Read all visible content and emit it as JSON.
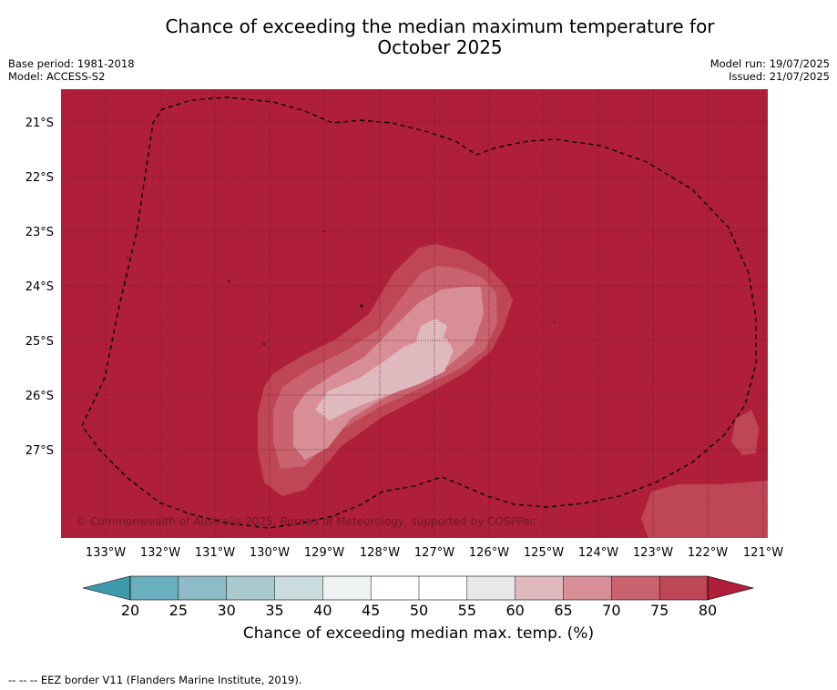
{
  "title": "Chance of exceeding the median maximum temperature for\nOctober 2025",
  "title_line1": "Chance of exceeding the median maximum temperature for",
  "title_line2": "October 2025",
  "base_period": "Base period: 1981-2018",
  "model": "Model: ACCESS-S2",
  "model_run": "Model run: 19/07/2025",
  "issued": "Issued: 21/07/2025",
  "copyright": "© Commonwealth of Australia 2025, Bureau of Meteorology, supported by COSPPac",
  "lat_labels": [
    "21°S",
    "22°S",
    "23°S",
    "24°S",
    "25°S",
    "26°S",
    "27°S"
  ],
  "lon_labels": [
    "133°W",
    "132°W",
    "131°W",
    "130°W",
    "129°W",
    "128°W",
    "127°W",
    "126°W",
    "125°W",
    "124°W",
    "123°W",
    "122°W",
    "121°W"
  ],
  "colorbar": {
    "title": "Chance of exceeding median max. temp. (%)",
    "ticks": [
      "20",
      "25",
      "30",
      "35",
      "40",
      "45",
      "50",
      "55",
      "60",
      "65",
      "70",
      "75",
      "80"
    ],
    "colors": [
      "#3f9aab",
      "#6aafbf",
      "#8dbcc8",
      "#aac9cf",
      "#cbdcdf",
      "#eef3f4",
      "#ffffff",
      "#ffffff",
      "#e8e8e8",
      "#e0b9bf",
      "#d78e97",
      "#c8636f",
      "#bf4655",
      "#b01f3a"
    ]
  },
  "map_colors": {
    "level_80": "#b01f3a",
    "level_75": "#bf4655",
    "level_70": "#c8636f",
    "level_65": "#d78e97",
    "level_60": "#e0b9bf"
  },
  "footnote": "--  --  -- EEZ border V11 (Flanders Marine Institute, 2019)."
}
